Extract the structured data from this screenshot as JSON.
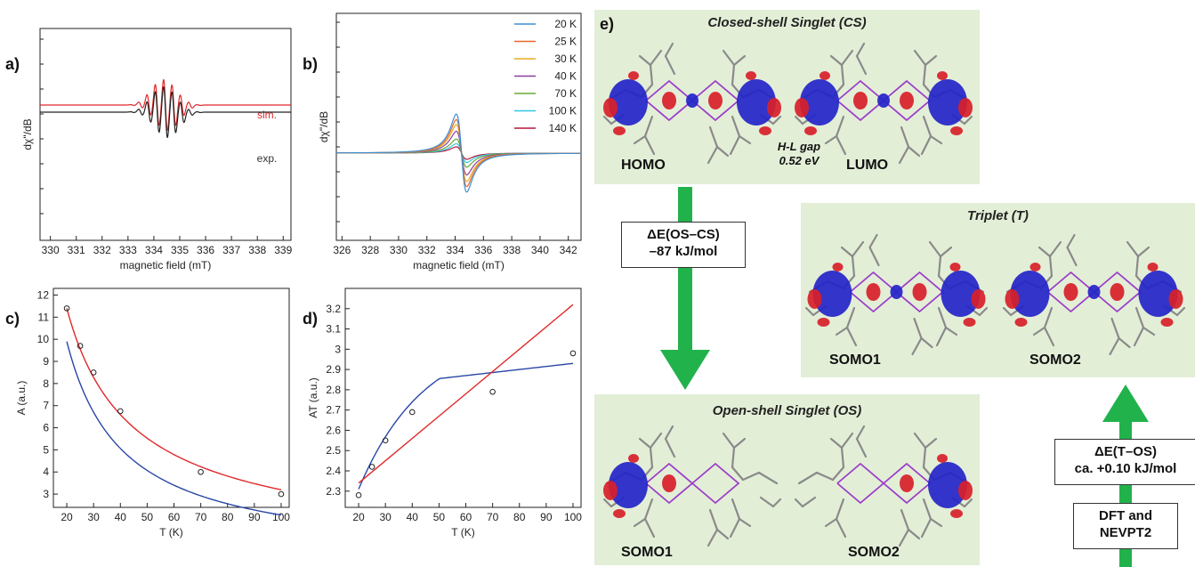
{
  "panel_labels": {
    "a": "a)",
    "b": "b)",
    "c": "c)",
    "d": "d)",
    "e": "e)"
  },
  "chart_data": [
    {
      "panel": "a)",
      "type": "line",
      "xlabel": "magnetic field (mT)",
      "ylabel": "dχ\"/dB",
      "xlim": [
        329.6,
        339.3
      ],
      "xticks": [
        330,
        331,
        332,
        333,
        334,
        335,
        336,
        337,
        338,
        339
      ],
      "series": [
        {
          "name": "sim.",
          "color": "#e0282a",
          "baseline": 0.25,
          "center": 334.45,
          "spacing": 0.32,
          "amplitude": 1.0
        },
        {
          "name": "exp.",
          "color": "#222222",
          "baseline": 0.11,
          "center": 334.45,
          "spacing": 0.32,
          "amplitude": 1.0
        }
      ]
    },
    {
      "panel": "b)",
      "type": "line",
      "xlabel": "magnetic field (mT)",
      "ylabel": "dχ\"/dB",
      "xlim": [
        325.6,
        342.9
      ],
      "xticks": [
        326,
        328,
        330,
        332,
        334,
        336,
        338,
        340,
        342
      ],
      "legend_position": "top-right",
      "series": [
        {
          "name": "20 K",
          "color": "#3b8fd4",
          "amplitude": 1.0
        },
        {
          "name": "25 K",
          "color": "#e8652b",
          "amplitude": 0.86
        },
        {
          "name": "30 K",
          "color": "#e9ac1e",
          "amplitude": 0.73
        },
        {
          "name": "40 K",
          "color": "#8b3fa3",
          "amplitude": 0.56
        },
        {
          "name": "70 K",
          "color": "#6aa83a",
          "amplitude": 0.36
        },
        {
          "name": "100 K",
          "color": "#36c6e6",
          "amplitude": 0.24
        },
        {
          "name": "140 K",
          "color": "#b3163a",
          "amplitude": 0.16
        }
      ]
    },
    {
      "panel": "c)",
      "type": "scatter",
      "xlabel": "T (K)",
      "ylabel": "A (a.u.)",
      "xlim": [
        15,
        103
      ],
      "ylim": [
        2.4,
        12.3
      ],
      "xticks": [
        20,
        30,
        40,
        50,
        60,
        70,
        80,
        90,
        100
      ],
      "yticks": [
        3,
        4,
        5,
        6,
        7,
        8,
        9,
        10,
        11,
        12
      ],
      "points": {
        "x": [
          20,
          25,
          30,
          40,
          70,
          100
        ],
        "y": [
          11.4,
          9.7,
          8.5,
          6.75,
          4.0,
          3.0
        ]
      },
      "fits": [
        {
          "color": "#2a47a6",
          "a": 207.3,
          "b": 0.94
        },
        {
          "color": "#e0282a",
          "a": 239.3,
          "b": -0.2
        }
      ]
    },
    {
      "panel": "d)",
      "type": "scatter",
      "xlabel": "T (K)",
      "ylabel": "AT (a.u.)",
      "xlim": [
        15,
        103
      ],
      "ylim": [
        2.22,
        3.3
      ],
      "xticks": [
        20,
        30,
        40,
        50,
        60,
        70,
        80,
        90,
        100
      ],
      "yticks": [
        2.3,
        2.4,
        2.5,
        2.6,
        2.7,
        2.8,
        2.9,
        3.0,
        3.1,
        3.2
      ],
      "points": {
        "x": [
          20,
          25,
          30,
          40,
          70,
          100
        ],
        "y": [
          2.28,
          2.42,
          2.55,
          2.69,
          2.79,
          2.98
        ]
      },
      "fits": [
        {
          "color": "#2a47a6",
          "a": 207.3,
          "b": 0.94
        },
        {
          "color": "#e0282a",
          "slope": 0.011,
          "intercept": 2.12
        }
      ]
    }
  ],
  "diagram": {
    "cs": {
      "title": "Closed-shell Singlet (CS)",
      "homo": "HOMO",
      "lumo": "LUMO",
      "gap_line1": "H-L gap",
      "gap_line2": "0.52 eV"
    },
    "triplet": {
      "title": "Triplet (T)",
      "somo1": "SOMO1",
      "somo2": "SOMO2"
    },
    "os": {
      "title": "Open-shell Singlet (OS)",
      "somo1": "SOMO1",
      "somo2": "SOMO2"
    },
    "delta_os_cs": {
      "line1": "ΔE(OS–CS)",
      "line2": "–87 kJ/mol"
    },
    "delta_t_os": {
      "line1": "ΔE(T–OS)",
      "line2": "ca. +0.10 kJ/mol"
    },
    "method": {
      "line1": "DFT and",
      "line2": "NEVPT2"
    },
    "colors": {
      "panel_bg": "#e3eed7",
      "arrow": "#22b24c",
      "lobe_blue": "#2424c8",
      "lobe_red": "#d8202a",
      "bond": "#9a3fc8"
    }
  }
}
